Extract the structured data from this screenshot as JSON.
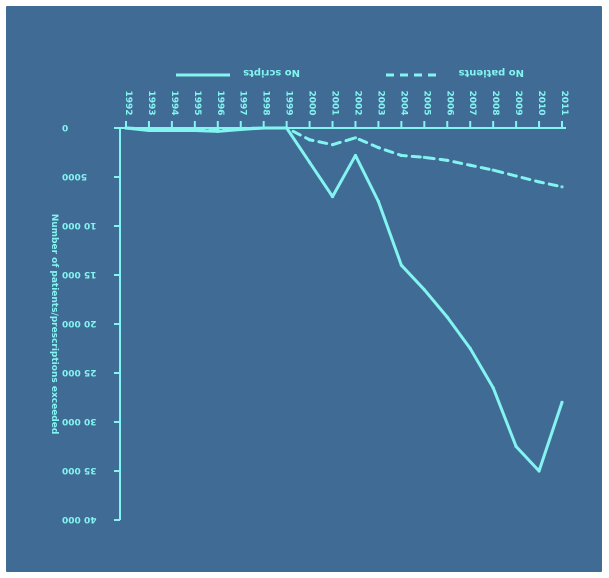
{
  "chart_data": {
    "type": "line",
    "title": "",
    "xlabel": "",
    "ylabel": "Number of patients/prescriptions exceeded",
    "x": [
      "1992",
      "1993",
      "1994",
      "1995",
      "1996",
      "1997",
      "1998",
      "1999",
      "2000",
      "2001",
      "2002",
      "2003",
      "2004",
      "2005",
      "2006",
      "2007",
      "2008",
      "2009",
      "2010",
      "2011"
    ],
    "series": [
      {
        "name": "No scripts",
        "style": "solid",
        "values": [
          0,
          -250,
          -250,
          -250,
          -350,
          -150,
          0,
          0,
          -3500,
          -7000,
          -2800,
          -7500,
          -14000,
          -16500,
          -19300,
          -22500,
          -26500,
          -32500,
          -35000,
          -28000
        ]
      },
      {
        "name": "No patients",
        "style": "dashed",
        "values": [
          0,
          -120,
          -100,
          -100,
          -160,
          -50,
          0,
          0,
          -1200,
          -1700,
          -1000,
          -2000,
          -2800,
          -3000,
          -3300,
          -3800,
          -4300,
          -4900,
          -5500,
          -6000
        ]
      }
    ],
    "ylim": [
      -40000,
      0
    ],
    "yticks": [
      0,
      -5000,
      -10000,
      -15000,
      -20000,
      -25000,
      -30000,
      -35000,
      -40000
    ],
    "ytick_labels": [
      "0",
      "5000",
      "10 000",
      "15 000",
      "20 000",
      "25 000",
      "30 000",
      "35 000",
      "40 000"
    ],
    "grid": false,
    "legend_position": "top-center",
    "colors": {
      "background": "#406b95",
      "foreground": "#83f4f0"
    }
  }
}
